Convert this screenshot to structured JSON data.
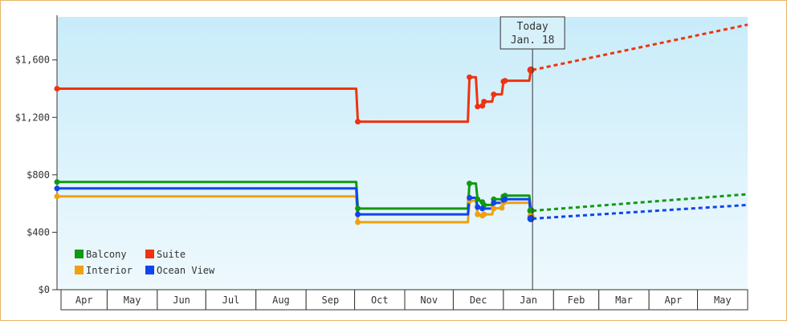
{
  "chart_data": {
    "type": "line",
    "title": "",
    "xlabel": "",
    "ylabel": "",
    "x_domain": [
      "2018-03-30",
      "2019-05-31"
    ],
    "ylim": [
      0,
      1900
    ],
    "y_ticks": [
      "$0",
      "$400",
      "$800",
      "$1,200",
      "$1,600"
    ],
    "y_tick_values": [
      0,
      400,
      800,
      1200,
      1600
    ],
    "months": [
      {
        "label": "Apr",
        "start": "2018-03-30",
        "end": "2018-04-30"
      },
      {
        "label": "May",
        "start": "2018-04-30",
        "end": "2018-05-31"
      },
      {
        "label": "Jun",
        "start": "2018-05-31",
        "end": "2018-06-30"
      },
      {
        "label": "Jul",
        "start": "2018-06-30",
        "end": "2018-07-31"
      },
      {
        "label": "Aug",
        "start": "2018-07-31",
        "end": "2018-08-31"
      },
      {
        "label": "Sep",
        "start": "2018-08-31",
        "end": "2018-09-30"
      },
      {
        "label": "Oct",
        "start": "2018-09-30",
        "end": "2018-10-31"
      },
      {
        "label": "Nov",
        "start": "2018-10-31",
        "end": "2018-11-30"
      },
      {
        "label": "Dec",
        "start": "2018-11-30",
        "end": "2018-12-31"
      },
      {
        "label": "Jan",
        "start": "2018-12-31",
        "end": "2019-01-31"
      },
      {
        "label": "Feb",
        "start": "2019-01-31",
        "end": "2019-02-28"
      },
      {
        "label": "Mar",
        "start": "2019-02-28",
        "end": "2019-03-31"
      },
      {
        "label": "Apr",
        "start": "2019-03-31",
        "end": "2019-04-30"
      },
      {
        "label": "May",
        "start": "2019-04-30",
        "end": "2019-05-31"
      }
    ],
    "today": {
      "date": "2019-01-18",
      "label_line1": "Today",
      "label_line2": "Jan. 18"
    },
    "legend": {
      "placement": "bottom-left"
    },
    "series": [
      {
        "name": "Balcony",
        "color": "#119911",
        "points": [
          [
            "2018-03-30",
            750
          ],
          [
            "2018-10-01",
            750
          ],
          [
            "2018-10-02",
            565
          ],
          [
            "2018-12-09",
            565
          ],
          [
            "2018-12-10",
            740
          ],
          [
            "2018-12-14",
            740
          ],
          [
            "2018-12-15",
            630
          ],
          [
            "2018-12-18",
            610
          ],
          [
            "2018-12-19",
            590
          ],
          [
            "2018-12-24",
            590
          ],
          [
            "2018-12-25",
            630
          ],
          [
            "2018-12-30",
            630
          ],
          [
            "2018-12-31",
            650
          ],
          [
            "2019-01-01",
            655
          ],
          [
            "2019-01-16",
            655
          ],
          [
            "2019-01-17",
            550
          ]
        ],
        "forecast": [
          [
            "2019-01-18",
            550
          ],
          [
            "2019-05-31",
            665
          ]
        ]
      },
      {
        "name": "Suite",
        "color": "#ee3311",
        "points": [
          [
            "2018-03-30",
            1400
          ],
          [
            "2018-10-01",
            1400
          ],
          [
            "2018-10-02",
            1170
          ],
          [
            "2018-12-09",
            1170
          ],
          [
            "2018-12-10",
            1480
          ],
          [
            "2018-12-14",
            1480
          ],
          [
            "2018-12-15",
            1275
          ],
          [
            "2018-12-18",
            1280
          ],
          [
            "2018-12-19",
            1310
          ],
          [
            "2018-12-24",
            1310
          ],
          [
            "2018-12-25",
            1360
          ],
          [
            "2018-12-30",
            1360
          ],
          [
            "2018-12-31",
            1450
          ],
          [
            "2019-01-01",
            1455
          ],
          [
            "2019-01-16",
            1455
          ],
          [
            "2019-01-17",
            1530
          ]
        ],
        "forecast": [
          [
            "2019-01-18",
            1530
          ],
          [
            "2019-05-31",
            1845
          ]
        ]
      },
      {
        "name": "Interior",
        "color": "#f0a010",
        "points": [
          [
            "2018-03-30",
            650
          ],
          [
            "2018-10-01",
            650
          ],
          [
            "2018-10-02",
            470
          ],
          [
            "2018-12-09",
            470
          ],
          [
            "2018-12-10",
            620
          ],
          [
            "2018-12-14",
            620
          ],
          [
            "2018-12-15",
            525
          ],
          [
            "2018-12-18",
            515
          ],
          [
            "2018-12-19",
            525
          ],
          [
            "2018-12-24",
            525
          ],
          [
            "2018-12-25",
            565
          ],
          [
            "2018-12-30",
            570
          ],
          [
            "2018-12-31",
            605
          ],
          [
            "2019-01-01",
            605
          ],
          [
            "2019-01-16",
            605
          ],
          [
            "2019-01-17",
            510
          ]
        ],
        "forecast": []
      },
      {
        "name": "Ocean View",
        "color": "#1144ee",
        "points": [
          [
            "2018-03-30",
            705
          ],
          [
            "2018-10-01",
            705
          ],
          [
            "2018-10-02",
            525
          ],
          [
            "2018-12-09",
            525
          ],
          [
            "2018-12-10",
            640
          ],
          [
            "2018-12-14",
            640
          ],
          [
            "2018-12-15",
            575
          ],
          [
            "2018-12-18",
            565
          ],
          [
            "2018-12-19",
            565
          ],
          [
            "2018-12-24",
            565
          ],
          [
            "2018-12-25",
            605
          ],
          [
            "2018-12-30",
            605
          ],
          [
            "2018-12-31",
            625
          ],
          [
            "2019-01-01",
            630
          ],
          [
            "2019-01-16",
            630
          ],
          [
            "2019-01-17",
            495
          ]
        ],
        "forecast": [
          [
            "2019-01-18",
            495
          ],
          [
            "2019-05-31",
            590
          ]
        ]
      }
    ]
  }
}
